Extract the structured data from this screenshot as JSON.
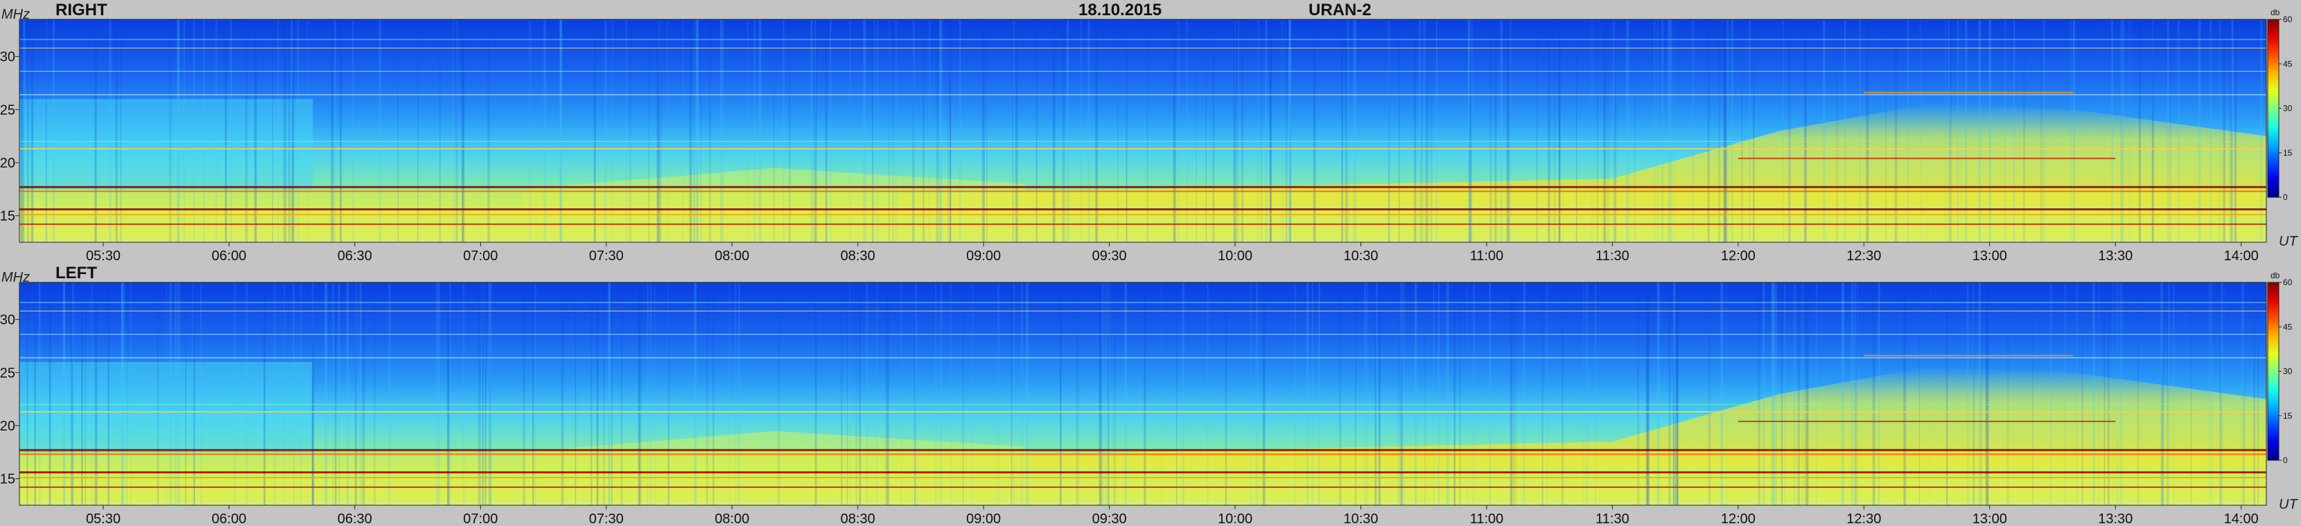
{
  "header": {
    "date": "18.10.2015",
    "instrument": "URAN-2"
  },
  "chart_data": [
    {
      "type": "heatmap",
      "title": "RIGHT",
      "ylabel": "MHz",
      "xlabel": "UT",
      "ylim": [
        12.5,
        33.5
      ],
      "yticks": [
        15,
        20,
        25,
        30
      ],
      "xlim": [
        "05:10",
        "14:06"
      ],
      "xticks": [
        "05:30",
        "06:00",
        "06:30",
        "07:00",
        "07:30",
        "08:00",
        "08:30",
        "09:00",
        "09:30",
        "10:00",
        "10:30",
        "11:00",
        "11:30",
        "12:00",
        "12:30",
        "13:00",
        "13:30",
        "14:00"
      ],
      "colorbar": {
        "label": "db",
        "range": [
          0,
          60
        ],
        "ticks": [
          0,
          15,
          30,
          45,
          60
        ]
      }
    },
    {
      "type": "heatmap",
      "title": "LEFT",
      "ylabel": "MHz",
      "xlabel": "UT",
      "ylim": [
        12.5,
        33.5
      ],
      "yticks": [
        15,
        20,
        25,
        30
      ],
      "xlim": [
        "05:10",
        "14:06"
      ],
      "xticks": [
        "05:30",
        "06:00",
        "06:30",
        "07:00",
        "07:30",
        "08:00",
        "08:30",
        "09:00",
        "09:30",
        "10:00",
        "10:30",
        "11:00",
        "11:30",
        "12:00",
        "12:30",
        "13:00",
        "13:30",
        "14:00"
      ],
      "colorbar": {
        "label": "db",
        "range": [
          0,
          60
        ],
        "ticks": [
          0,
          15,
          30,
          45,
          60
        ]
      }
    }
  ]
}
